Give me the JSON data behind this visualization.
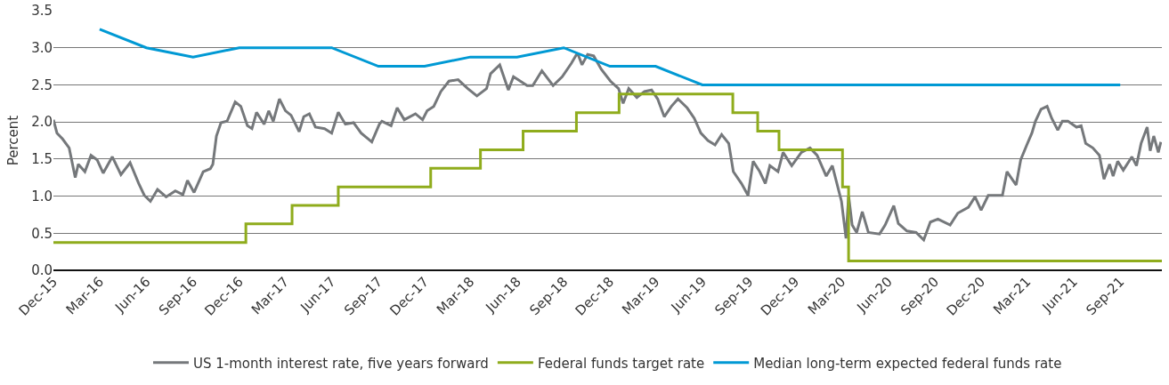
{
  "chart_data": {
    "type": "line",
    "ylabel": "Percent",
    "legend": "bottom",
    "grid": "y",
    "line_style": "solid",
    "xlim": [
      "2015-12-01",
      "2021-11-22"
    ],
    "xticks": [
      {
        "value": "2015-12",
        "label": "Dec-15"
      },
      {
        "value": "2016-03",
        "label": "Mar-16"
      },
      {
        "value": "2016-06",
        "label": "Jun-16"
      },
      {
        "value": "2016-09",
        "label": "Sep-16"
      },
      {
        "value": "2016-12",
        "label": "Dec-16"
      },
      {
        "value": "2017-03",
        "label": "Mar-17"
      },
      {
        "value": "2017-06",
        "label": "Jun-17"
      },
      {
        "value": "2017-09",
        "label": "Sep-17"
      },
      {
        "value": "2017-12",
        "label": "Dec-17"
      },
      {
        "value": "2018-03",
        "label": "Mar-18"
      },
      {
        "value": "2018-06",
        "label": "Jun-18"
      },
      {
        "value": "2018-09",
        "label": "Sep-18"
      },
      {
        "value": "2018-12",
        "label": "Dec-18"
      },
      {
        "value": "2019-03",
        "label": "Mar-19"
      },
      {
        "value": "2019-06",
        "label": "Jun-19"
      },
      {
        "value": "2019-09",
        "label": "Sep-19"
      },
      {
        "value": "2019-12",
        "label": "Dec-19"
      },
      {
        "value": "2020-03",
        "label": "Mar-20"
      },
      {
        "value": "2020-06",
        "label": "Jun-20"
      },
      {
        "value": "2020-09",
        "label": "Sep-20"
      },
      {
        "value": "2020-12",
        "label": "Dec-20"
      },
      {
        "value": "2021-03",
        "label": "Mar-21"
      },
      {
        "value": "2021-06",
        "label": "Jun-21"
      },
      {
        "value": "2021-09",
        "label": "Sep-21"
      }
    ],
    "ylim": [
      0,
      3.5
    ],
    "yticks": [
      {
        "value": 0,
        "label": "0.0"
      },
      0.5,
      {
        "value": 1,
        "label": "1.0"
      },
      1.5,
      {
        "value": 2,
        "label": "2.0"
      },
      2.5,
      {
        "value": 3,
        "label": "3.0"
      },
      3.5
    ],
    "series": [
      {
        "name": "US 1-month interest rate, five years forward",
        "color": "#75787b",
        "x": [
          "2015-12-01",
          "2015-12-08",
          "2015-12-19",
          "2016-01-01",
          "2016-01-13",
          "2016-01-19",
          "2016-02-01",
          "2016-02-13",
          "2016-02-25",
          "2016-03-08",
          "2016-03-26",
          "2016-04-12",
          "2016-04-30",
          "2016-05-17",
          "2016-05-28",
          "2016-06-09",
          "2016-06-23",
          "2016-07-10",
          "2016-07-28",
          "2016-08-12",
          "2016-08-21",
          "2016-09-03",
          "2016-09-21",
          "2016-10-05",
          "2016-10-10",
          "2016-10-17",
          "2016-10-26",
          "2016-11-07",
          "2016-11-23",
          "2016-12-04",
          "2016-12-17",
          "2016-12-26",
          "2017-01-04",
          "2017-01-19",
          "2017-01-28",
          "2017-02-06",
          "2017-02-18",
          "2017-03-02",
          "2017-03-13",
          "2017-03-29",
          "2017-04-07",
          "2017-04-18",
          "2017-04-30",
          "2017-05-18",
          "2017-06-01",
          "2017-06-14",
          "2017-06-28",
          "2017-07-14",
          "2017-07-29",
          "2017-08-19",
          "2017-09-03",
          "2017-09-08",
          "2017-09-26",
          "2017-10-08",
          "2017-10-22",
          "2017-11-13",
          "2017-11-27",
          "2017-12-06",
          "2017-12-19",
          "2018-01-02",
          "2018-01-18",
          "2018-02-05",
          "2018-02-24",
          "2018-03-14",
          "2018-04-02",
          "2018-04-10",
          "2018-04-28",
          "2018-05-15",
          "2018-05-25",
          "2018-06-21",
          "2018-07-02",
          "2018-07-20",
          "2018-08-11",
          "2018-08-29",
          "2018-09-16",
          "2018-09-28",
          "2018-10-07",
          "2018-10-18",
          "2018-10-30",
          "2018-11-14",
          "2018-12-02",
          "2018-12-18",
          "2018-12-27",
          "2019-01-07",
          "2019-01-23",
          "2019-02-07",
          "2019-02-21",
          "2019-03-05",
          "2019-03-18",
          "2019-04-01",
          "2019-04-14",
          "2019-05-02",
          "2019-05-16",
          "2019-05-29",
          "2019-06-12",
          "2019-06-26",
          "2019-07-09",
          "2019-07-23",
          "2019-08-01",
          "2019-08-17",
          "2019-08-30",
          "2019-09-09",
          "2019-09-22",
          "2019-10-03",
          "2019-10-12",
          "2019-10-28",
          "2019-11-07",
          "2019-11-24",
          "2019-12-13",
          "2019-12-30",
          "2020-01-13",
          "2020-01-31",
          "2020-02-12",
          "2020-02-21",
          "2020-03-01",
          "2020-03-10",
          "2020-03-15",
          "2020-03-22",
          "2020-03-31",
          "2020-04-11",
          "2020-04-23",
          "2020-05-15",
          "2020-05-26",
          "2020-06-12",
          "2020-06-21",
          "2020-07-08",
          "2020-07-26",
          "2020-08-10",
          "2020-08-23",
          "2020-09-07",
          "2020-10-01",
          "2020-10-16",
          "2020-11-06",
          "2020-11-19",
          "2020-12-01",
          "2020-12-15",
          "2021-01-12",
          "2021-01-21",
          "2021-02-08",
          "2021-02-17",
          "2021-03-01",
          "2021-03-11",
          "2021-03-18",
          "2021-03-29",
          "2021-04-10",
          "2021-04-19",
          "2021-05-01",
          "2021-05-10",
          "2021-05-21",
          "2021-06-07",
          "2021-06-16",
          "2021-06-25",
          "2021-07-09",
          "2021-07-22",
          "2021-07-31",
          "2021-08-11",
          "2021-08-18",
          "2021-08-27",
          "2021-09-07",
          "2021-09-24",
          "2021-10-03",
          "2021-10-12",
          "2021-10-24",
          "2021-10-30",
          "2021-11-06",
          "2021-11-15",
          "2021-11-20"
        ],
        "values": [
          2.03,
          1.85,
          1.77,
          1.65,
          1.25,
          1.43,
          1.33,
          1.55,
          1.49,
          1.31,
          1.53,
          1.29,
          1.45,
          1.17,
          1.01,
          0.93,
          1.09,
          0.99,
          1.07,
          1.02,
          1.21,
          1.05,
          1.33,
          1.37,
          1.43,
          1.81,
          1.99,
          2.01,
          2.27,
          2.21,
          1.95,
          1.91,
          2.13,
          1.97,
          2.15,
          2.01,
          2.31,
          2.15,
          2.09,
          1.87,
          2.07,
          2.11,
          1.93,
          1.91,
          1.85,
          2.13,
          1.97,
          1.99,
          1.85,
          1.73,
          1.97,
          2.01,
          1.95,
          2.19,
          2.03,
          2.11,
          2.03,
          2.15,
          2.21,
          2.41,
          2.55,
          2.57,
          2.45,
          2.35,
          2.45,
          2.65,
          2.77,
          2.43,
          2.61,
          2.49,
          2.49,
          2.69,
          2.49,
          2.61,
          2.79,
          2.93,
          2.77,
          2.91,
          2.89,
          2.71,
          2.55,
          2.45,
          2.25,
          2.45,
          2.33,
          2.41,
          2.43,
          2.31,
          2.07,
          2.21,
          2.31,
          2.19,
          2.05,
          1.85,
          1.75,
          1.69,
          1.83,
          1.71,
          1.33,
          1.17,
          1.01,
          1.47,
          1.33,
          1.17,
          1.41,
          1.33,
          1.59,
          1.41,
          1.59,
          1.65,
          1.55,
          1.27,
          1.41,
          1.17,
          0.93,
          0.43,
          1.01,
          0.61,
          0.51,
          0.79,
          0.51,
          0.49,
          0.61,
          0.87,
          0.63,
          0.53,
          0.51,
          0.41,
          0.65,
          0.69,
          0.61,
          0.77,
          0.85,
          0.99,
          0.81,
          1.01,
          1.01,
          1.33,
          1.15,
          1.49,
          1.69,
          1.85,
          2.01,
          2.17,
          2.21,
          2.05,
          1.89,
          2.01,
          2.01,
          1.93,
          1.95,
          1.71,
          1.65,
          1.55,
          1.23,
          1.43,
          1.27,
          1.47,
          1.35,
          1.53,
          1.41,
          1.71,
          1.93,
          1.61,
          1.81,
          1.59,
          1.73
        ]
      },
      {
        "name": "Federal funds target rate",
        "color": "#8fac1c",
        "type": "step",
        "x": [
          "2015-12-01",
          "2016-12-14",
          "2017-03-15",
          "2017-06-14",
          "2017-12-13",
          "2018-03-21",
          "2018-06-13",
          "2018-09-26",
          "2018-12-19",
          "2019-07-31",
          "2019-09-18",
          "2019-10-30",
          "2020-03-03",
          "2020-03-15",
          "2021-11-22"
        ],
        "values": [
          0.375,
          0.625,
          0.875,
          1.125,
          1.375,
          1.625,
          1.875,
          2.125,
          2.375,
          2.125,
          1.875,
          1.625,
          1.125,
          0.125,
          0.125
        ]
      },
      {
        "name": "Median long-term expected federal funds rate",
        "color": "#0099d4",
        "x": [
          "2016-03",
          "2016-06",
          "2016-09",
          "2016-12",
          "2017-03",
          "2017-06",
          "2017-09",
          "2017-12",
          "2018-03",
          "2018-06",
          "2018-09",
          "2018-12",
          "2019-03",
          "2019-06",
          "2019-09",
          "2019-12",
          "2020-03",
          "2020-06",
          "2020-09",
          "2020-12",
          "2021-03",
          "2021-06",
          "2021-09"
        ],
        "values": [
          3.25,
          3.0,
          2.875,
          3.0,
          3.0,
          3.0,
          2.75,
          2.75,
          2.875,
          2.875,
          3.0,
          2.75,
          2.75,
          2.5,
          2.5,
          2.5,
          2.5,
          2.5,
          2.5,
          2.5,
          2.5,
          2.5,
          2.5
        ]
      }
    ]
  }
}
